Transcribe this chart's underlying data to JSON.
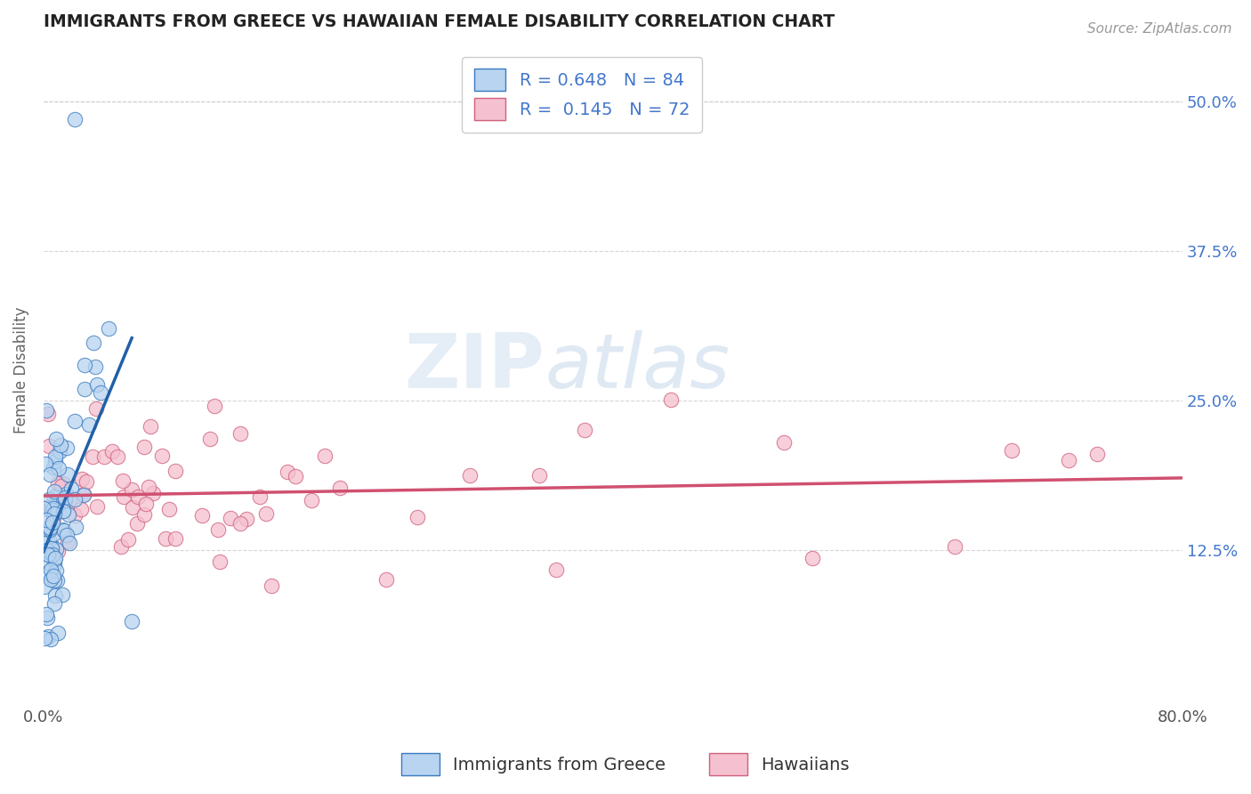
{
  "title": "IMMIGRANTS FROM GREECE VS HAWAIIAN FEMALE DISABILITY CORRELATION CHART",
  "source": "Source: ZipAtlas.com",
  "ylabel": "Female Disability",
  "xlim": [
    0.0,
    0.8
  ],
  "ylim": [
    0.0,
    0.55
  ],
  "legend_entries": [
    {
      "label": "Immigrants from Greece",
      "R": 0.648,
      "N": 84,
      "color": "#b8d4f0",
      "edge_color": "#3a7abf",
      "line_color": "#2060a8"
    },
    {
      "label": "Hawaiians",
      "R": 0.145,
      "N": 72,
      "color": "#f5c0d0",
      "edge_color": "#d0607a",
      "line_color": "#d05070"
    }
  ],
  "background_color": "#ffffff",
  "grid_color": "#cccccc",
  "title_color": "#222222",
  "axis_label_color": "#666666",
  "tick_color_right": "#4477cc",
  "ytick_positions": [
    0.0,
    0.125,
    0.25,
    0.375,
    0.5
  ],
  "ytick_labels_right": [
    "",
    "12.5%",
    "25.0%",
    "37.5%",
    "50.0%"
  ],
  "xtick_positions": [
    0.0,
    0.8
  ],
  "xtick_labels": [
    "0.0%",
    "80.0%"
  ],
  "watermark_ZIP": "ZIP",
  "watermark_atlas": "atlas"
}
